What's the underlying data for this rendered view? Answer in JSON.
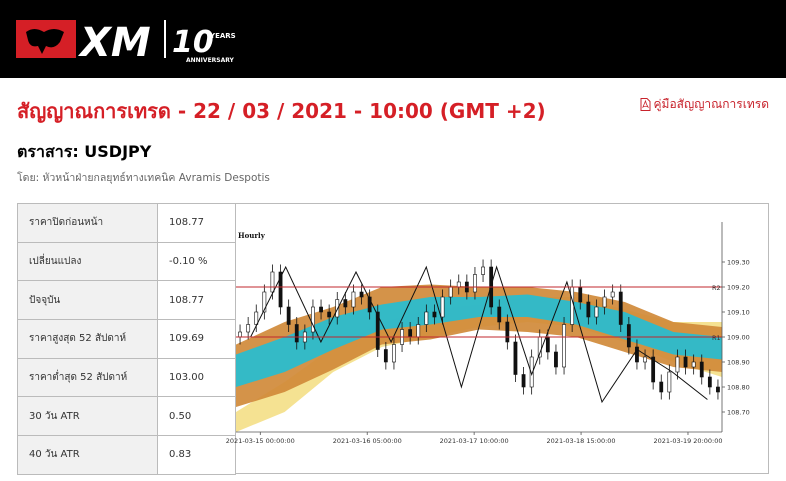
{
  "brand": {
    "logo_text": "XM",
    "anniversary_number": "10",
    "anniversary_years": "YEARS",
    "anniversary_label": "ANNIVERSARY",
    "colors": {
      "brand_red": "#d51f26",
      "header_bg": "#000000"
    }
  },
  "page": {
    "title": "สัญญาณการเทรด - 22 / 03 / 2021 - 10:00 (GMT +2)",
    "guide_link": "คู่มือสัญญาณการเทรด",
    "guide_icon": "pdf-icon",
    "instrument": "ตราสาร: USDJPY",
    "author": "โดย: หัวหน้าฝ่ายกลยุทธ์ทางเทคนิค Avramis Despotis"
  },
  "stats": [
    {
      "label": "ราคาปิดก่อนหน้า",
      "value": "108.77"
    },
    {
      "label": "เปลี่ยนแปลง",
      "value": "-0.10 %"
    },
    {
      "label": "ปัจจุบัน",
      "value": "108.77"
    },
    {
      "label": "ราคาสูงสุด 52 สัปดาห์",
      "value": "109.69"
    },
    {
      "label": "ราคาต่ำสุด 52 สัปดาห์",
      "value": "103.00"
    },
    {
      "label": "30 วัน ATR",
      "value": "0.50"
    },
    {
      "label": "40 วัน ATR",
      "value": "0.83"
    }
  ],
  "chart_data": {
    "type": "candlestick",
    "timeframe_label": "Hourly",
    "ylim": [
      108.62,
      109.42
    ],
    "y_ticks": [
      "109.30",
      "109.20",
      "109.10",
      "109.00",
      "108.90",
      "108.80",
      "108.70"
    ],
    "x_tick_labels": [
      "2021-03-15 00:00:00",
      "2021-03-16 05:00:00",
      "2021-03-17 10:00:00",
      "2021-03-18 15:00:00",
      "2021-03-19 20:00:00"
    ],
    "levels": [
      {
        "name": "R2",
        "value": 109.2,
        "color": "#c0272d"
      },
      {
        "name": "R1",
        "value": 109.0,
        "color": "#c0272d"
      }
    ],
    "band_colors": {
      "outer": "#d08a3a",
      "middle": "#2bbccd",
      "inner": "#f4e08c"
    },
    "bands": {
      "x": [
        0,
        0.1,
        0.2,
        0.3,
        0.4,
        0.5,
        0.6,
        0.7,
        0.8,
        0.9,
        1.0
      ],
      "outer_top": [
        108.97,
        109.06,
        109.12,
        109.2,
        109.21,
        109.2,
        109.2,
        109.18,
        109.14,
        109.06,
        109.04
      ],
      "middle_top": [
        108.93,
        109.0,
        109.08,
        109.13,
        109.16,
        109.16,
        109.17,
        109.14,
        109.1,
        109.02,
        109.0
      ],
      "middle_bot": [
        108.8,
        108.86,
        108.95,
        109.03,
        109.05,
        109.08,
        109.08,
        109.05,
        108.99,
        108.93,
        108.91
      ],
      "outer_bot": [
        108.72,
        108.78,
        108.87,
        108.97,
        108.99,
        109.03,
        109.02,
        109.0,
        108.94,
        108.88,
        108.86
      ],
      "inner_top": [
        108.7,
        108.82,
        108.96,
        109.06,
        109.11,
        109.13,
        109.16,
        109.16,
        109.11,
        109.06,
        109.06
      ],
      "inner_bot": [
        108.62,
        108.7,
        108.86,
        108.96,
        109.0,
        109.04,
        109.06,
        109.04,
        108.98,
        108.9,
        108.84
      ]
    },
    "close": [
      109.02,
      109.05,
      109.1,
      109.18,
      109.26,
      109.12,
      109.05,
      108.98,
      109.02,
      109.12,
      109.1,
      109.08,
      109.15,
      109.12,
      109.18,
      109.16,
      109.1,
      108.95,
      108.9,
      108.97,
      109.03,
      109.0,
      109.05,
      109.1,
      109.08,
      109.16,
      109.2,
      109.22,
      109.18,
      109.25,
      109.28,
      109.12,
      109.06,
      108.98,
      108.85,
      108.8,
      108.92,
      109.0,
      108.94,
      108.88,
      109.05,
      109.2,
      109.14,
      109.08,
      109.12,
      109.16,
      109.18,
      109.05,
      108.96,
      108.9,
      108.92,
      108.82,
      108.78,
      108.86,
      108.92,
      108.88,
      108.9,
      108.84,
      108.8,
      108.78
    ],
    "zigzag": [
      109.0,
      109.28,
      108.98,
      109.26,
      108.98,
      109.28,
      108.8,
      109.28,
      108.85,
      109.22,
      108.74,
      108.95,
      108.86,
      108.75
    ]
  }
}
